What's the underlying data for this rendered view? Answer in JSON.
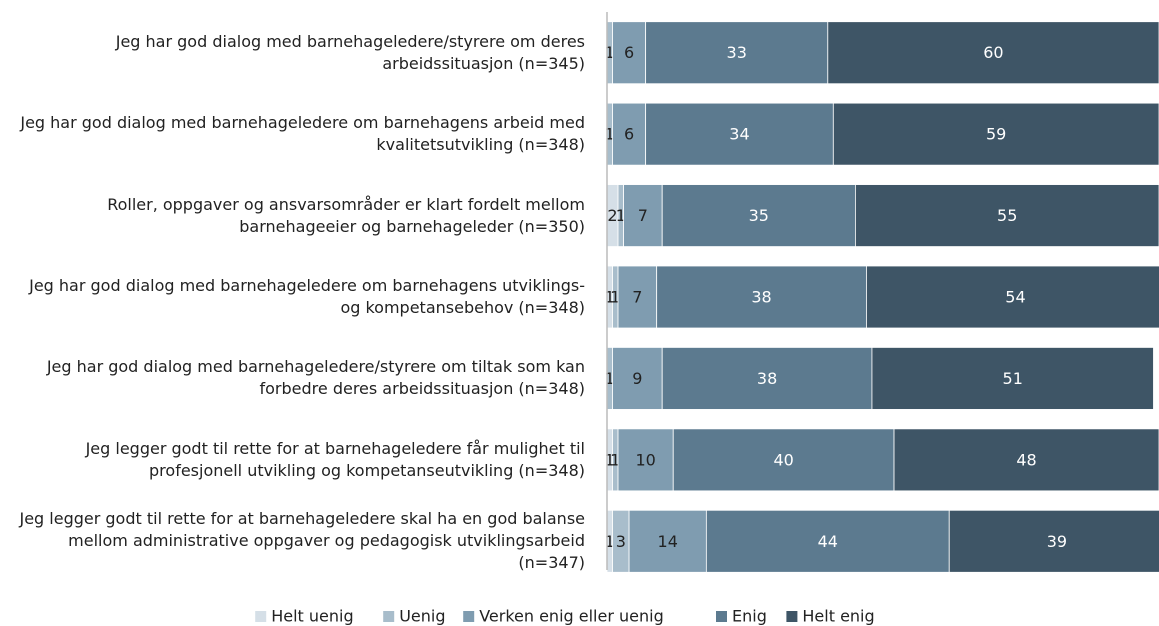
{
  "chart_data": {
    "type": "stacked_bar_horizontal",
    "categories": [
      "Jeg har god dialog med barnehageledere/styrere om deres arbeidssituasjon (n=345)",
      "Jeg har god dialog med barnehageledere om barnehagens arbeid med kvalitetsutvikling (n=348)",
      "Roller, oppgaver og ansvarsområder er klart fordelt mellom barnehageeier og barnehageleder (n=350)",
      "Jeg har god dialog med barnehageledere om barnehagens utviklings- og kompetansebehov (n=348)",
      "Jeg har god dialog med barnehageledere/styrere om tiltak som kan forbedre deres arbeidssituasjon (n=348)",
      "Jeg legger godt til rette for at barnehageledere får mulighet til profesjonell utvikling og kompetanseutvikling (n=348)",
      "Jeg legger godt til rette for at barnehageledere skal ha en god balanse mellom administrative oppgaver og pedagogisk utviklingsarbeid (n=347)"
    ],
    "series": [
      {
        "name": "Helt uenig",
        "color": "#d5dfe7",
        "values": [
          0,
          0,
          2,
          1,
          0,
          1,
          1
        ]
      },
      {
        "name": "Uenig",
        "color": "#a8bdcb",
        "values": [
          1,
          1,
          1,
          1,
          1,
          1,
          3
        ]
      },
      {
        "name": "Verken enig eller uenig",
        "color": "#7f9cb0",
        "values": [
          6,
          6,
          7,
          7,
          9,
          10,
          14
        ]
      },
      {
        "name": "Enig",
        "color": "#5c7a8f",
        "values": [
          33,
          34,
          35,
          38,
          38,
          40,
          44
        ]
      },
      {
        "name": "Helt enig",
        "color": "#3e5566",
        "values": [
          60,
          59,
          55,
          54,
          51,
          48,
          39
        ]
      }
    ],
    "xlim": [
      0,
      100
    ],
    "legend": "bottom"
  }
}
